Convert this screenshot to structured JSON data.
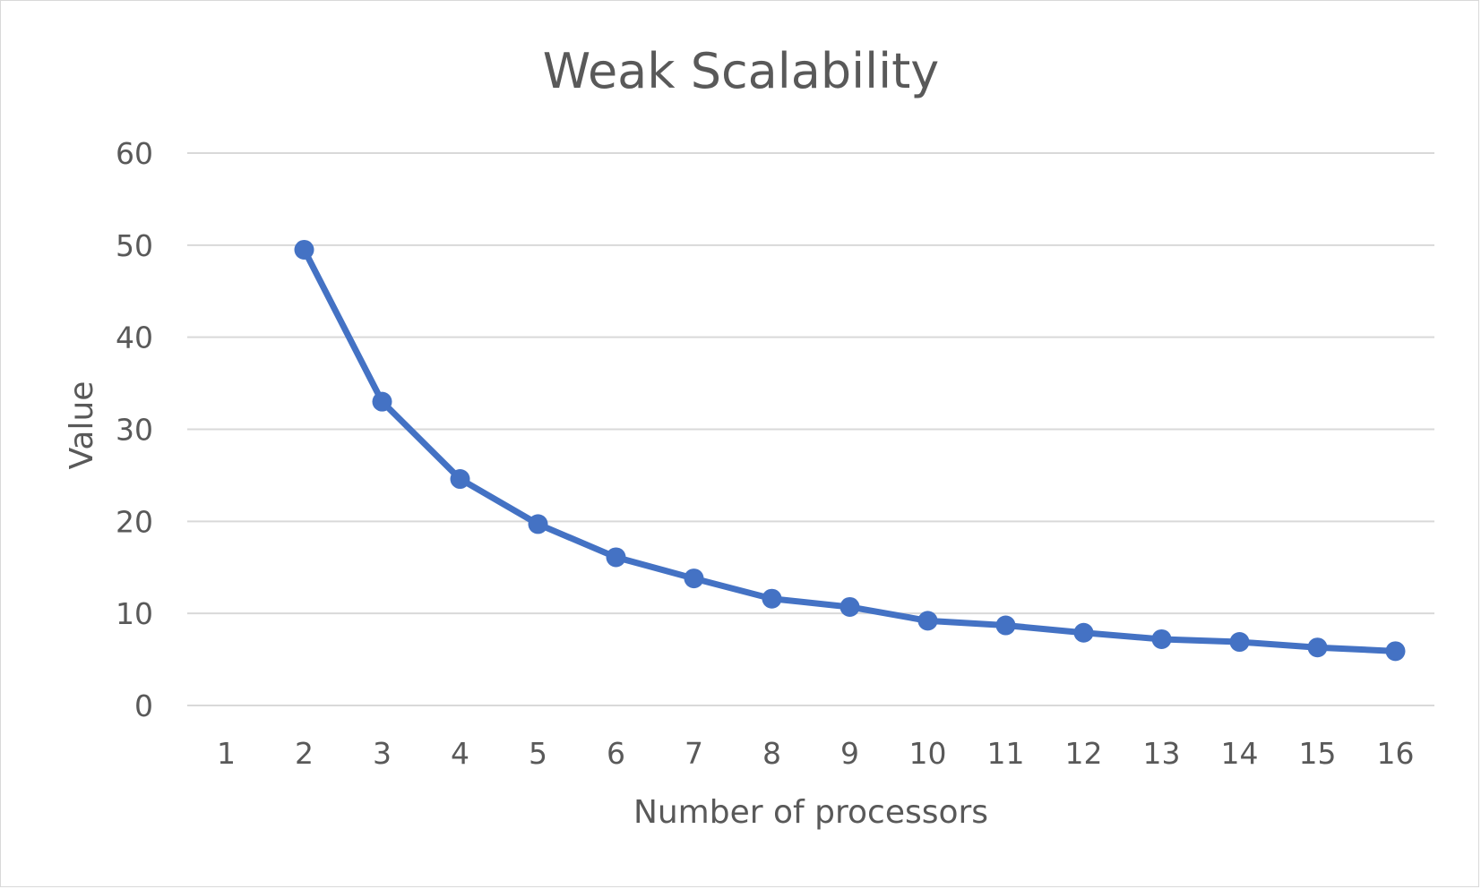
{
  "chart_data": {
    "type": "line",
    "title": "Weak Scalability",
    "xlabel": "Number of processors",
    "ylabel": "Value",
    "categories": [
      "1",
      "2",
      "3",
      "4",
      "5",
      "6",
      "7",
      "8",
      "9",
      "10",
      "11",
      "12",
      "13",
      "14",
      "15",
      "16"
    ],
    "yticks": [
      "0",
      "10",
      "20",
      "30",
      "40",
      "50",
      "60"
    ],
    "ylim": [
      0,
      60
    ],
    "grid": true,
    "legend": "none",
    "series": [
      {
        "color": "#4472c4",
        "x": [
          2,
          3,
          4,
          5,
          6,
          7,
          8,
          9,
          10,
          11,
          12,
          13,
          14,
          15,
          16
        ],
        "values": [
          49.5,
          33,
          24.6,
          19.7,
          16.1,
          13.8,
          11.6,
          10.7,
          9.2,
          8.7,
          7.9,
          7.2,
          6.9,
          6.3,
          5.9
        ]
      }
    ]
  }
}
